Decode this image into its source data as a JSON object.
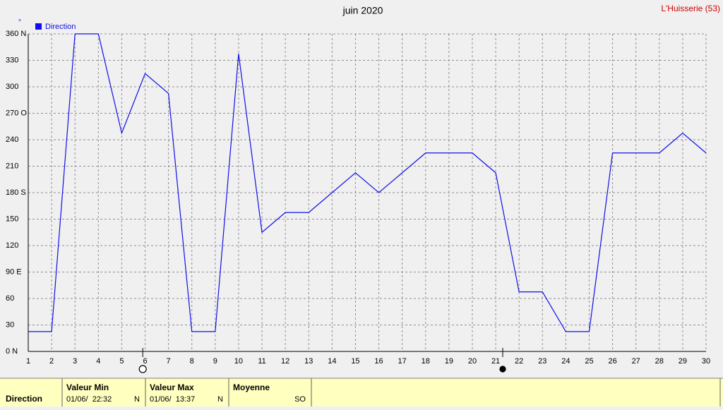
{
  "chart_data": {
    "type": "line",
    "title": "juin 2020",
    "station": "L'Huisserie (53)",
    "y_unit": "°",
    "x": [
      1,
      2,
      3,
      4,
      5,
      6,
      7,
      8,
      9,
      10,
      11,
      12,
      13,
      14,
      15,
      16,
      17,
      18,
      19,
      20,
      21,
      22,
      23,
      24,
      25,
      26,
      27,
      28,
      29,
      30
    ],
    "series": [
      {
        "name": "Direction",
        "color": "#1010e8",
        "values": [
          22.5,
          22.5,
          360,
          360,
          247.5,
          315,
          292.5,
          22.5,
          22.5,
          337.5,
          135,
          157.5,
          157.5,
          180,
          202.5,
          180,
          202.5,
          225,
          225,
          225,
          202.5,
          67.5,
          67.5,
          22.5,
          22.5,
          225,
          225,
          225,
          247.5,
          225
        ]
      }
    ],
    "xlim": [
      1,
      30
    ],
    "xticks": [
      1,
      2,
      3,
      4,
      5,
      6,
      7,
      8,
      9,
      10,
      11,
      12,
      13,
      14,
      15,
      16,
      17,
      18,
      19,
      20,
      21,
      22,
      23,
      24,
      25,
      26,
      27,
      28,
      29,
      30
    ],
    "ylim": [
      0,
      360
    ],
    "yticks": [
      {
        "value": 0,
        "label": "0 N"
      },
      30,
      60,
      {
        "value": 90,
        "label": "90 E"
      },
      120,
      150,
      {
        "value": 180,
        "label": "180 S"
      },
      210,
      240,
      {
        "value": 270,
        "label": "270 O"
      },
      300,
      330,
      {
        "value": 360,
        "label": "360 N"
      }
    ],
    "grid": true,
    "legend": "top-left",
    "moon_markers": [
      {
        "x": 5.9,
        "filled": false
      },
      {
        "x": 21.3,
        "filled": true
      }
    ]
  },
  "summary": {
    "row_label": "Direction",
    "columns": [
      {
        "header": "Valeur Min",
        "date": "01/06/  22:32",
        "direction": "N"
      },
      {
        "header": "Valeur Max",
        "date": "01/06/  13:37",
        "direction": "N"
      },
      {
        "header": "Moyenne",
        "direction": "SO"
      }
    ]
  }
}
